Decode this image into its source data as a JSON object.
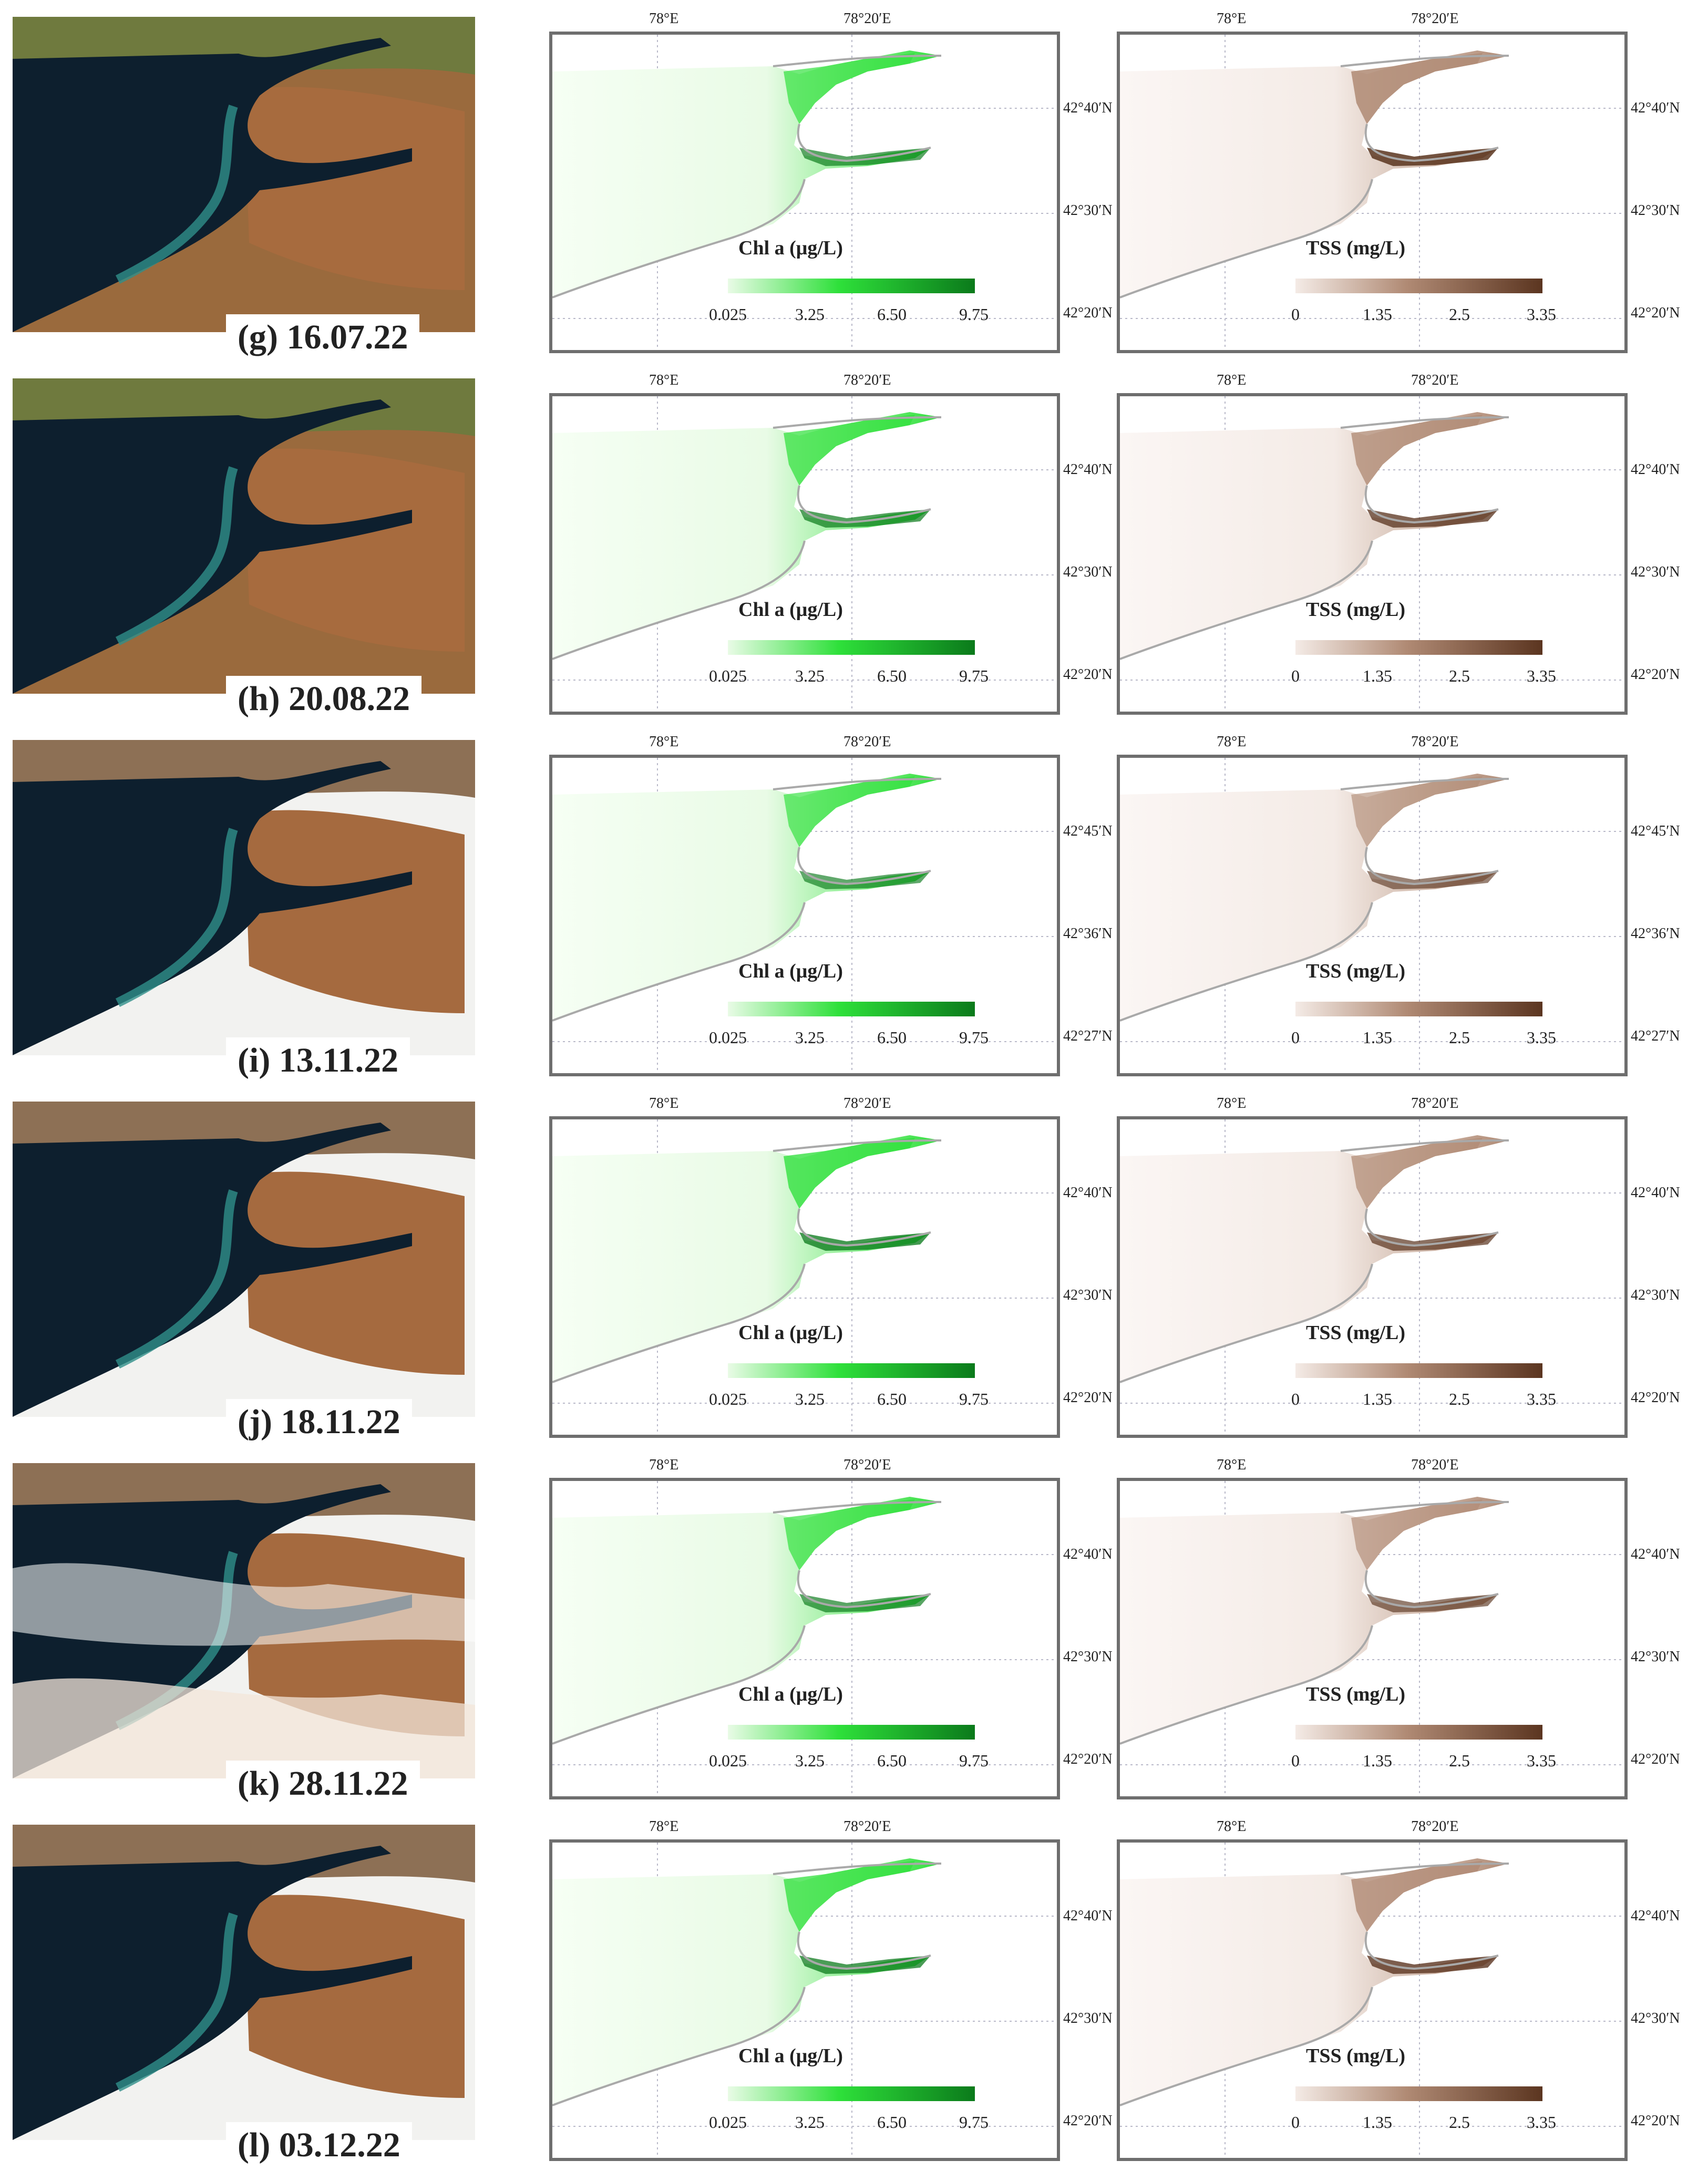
{
  "colors": {
    "chl_low": "#e9fbe6",
    "chl_high": "#0b7a1b",
    "tss_low": "#f4ebe6",
    "tss_high": "#5b3520",
    "lake": "#0d1f2e",
    "land": "#9a6a3d"
  },
  "legends": {
    "chl": {
      "title": "Chl a (μg/L)",
      "ticks": [
        "0.025",
        "3.25",
        "6.50",
        "9.75"
      ]
    },
    "tss": {
      "title": "TSS  (mg/L)",
      "ticks": [
        "0",
        "1.35",
        "2.5",
        "3.35"
      ]
    }
  },
  "panels": [
    {
      "label": "(g) 16.07.22",
      "lon": [
        "78°E",
        "78°20′E"
      ],
      "lat": [
        "42°40′N",
        "42°30′N",
        "42°20′N"
      ],
      "chl_intensity": 0.55,
      "tss_intensity": 0.85
    },
    {
      "label": "(h) 20.08.22",
      "lon": [
        "78°E",
        "78°20′E"
      ],
      "lat": [
        "42°40′N",
        "42°30′N",
        "42°20′N"
      ],
      "chl_intensity": 0.6,
      "tss_intensity": 0.7
    },
    {
      "label": "(i) 13.11.22",
      "lon": [
        "78°E",
        "78°20′E"
      ],
      "lat": [
        "42°45′N",
        "42°36′N",
        "42°27′N"
      ],
      "chl_intensity": 0.5,
      "tss_intensity": 0.45
    },
    {
      "label": "(j) 18.11.22",
      "lon": [
        "78°E",
        "78°20′E"
      ],
      "lat": [
        "42°40′N",
        "42°30′N",
        "42°20′N"
      ],
      "chl_intensity": 0.7,
      "tss_intensity": 0.6
    },
    {
      "label": "(k) 28.11.22",
      "lon": [
        "78°E",
        "78°20′E"
      ],
      "lat": [
        "42°40′N",
        "42°30′N",
        "42°20′N"
      ],
      "chl_intensity": 0.55,
      "tss_intensity": 0.5
    },
    {
      "label": "(l) 03.12.22",
      "lon": [
        "78°E",
        "78°20′E"
      ],
      "lat": [
        "42°40′N",
        "42°30′N",
        "42°20′N"
      ],
      "chl_intensity": 0.65,
      "tss_intensity": 0.75
    }
  ]
}
